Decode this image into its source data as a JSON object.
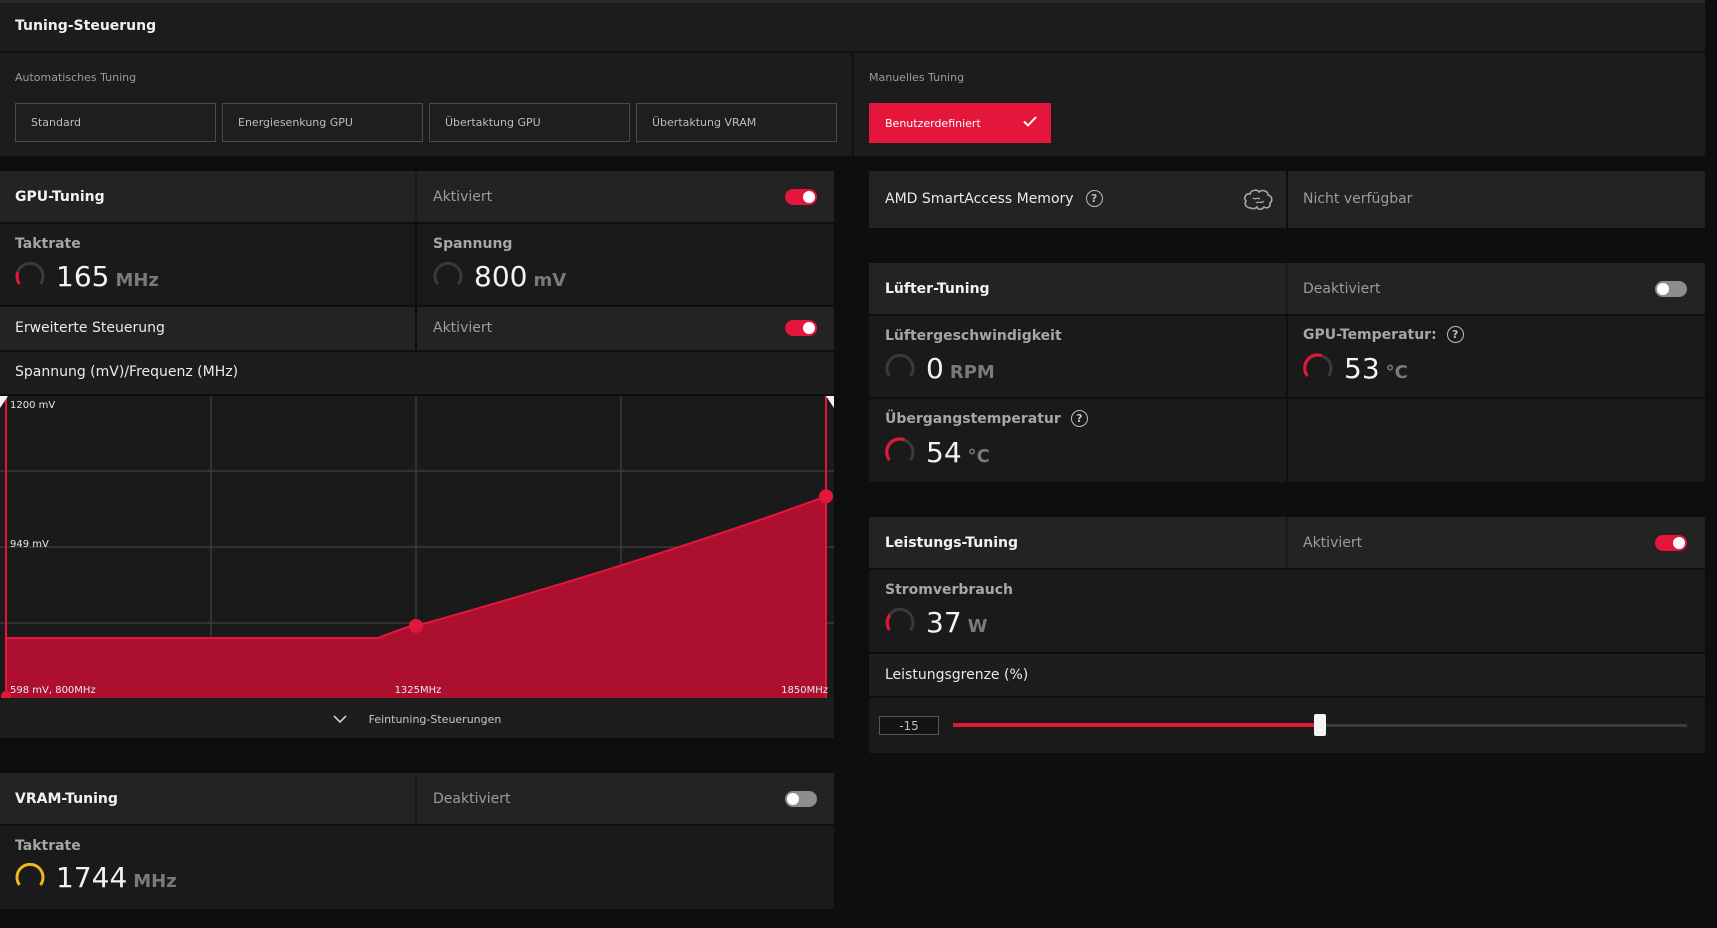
{
  "tuning": {
    "title": "Tuning-Steuerung",
    "auto_label": "Automatisches Tuning",
    "manual_label": "Manuelles Tuning",
    "presets": [
      "Standard",
      "Energiesenkung GPU",
      "Übertaktung GPU",
      "Übertaktung VRAM"
    ],
    "custom_label": "Benutzerdefiniert"
  },
  "gpu_tuning": {
    "title": "GPU-Tuning",
    "status": "Aktiviert",
    "enabled": true,
    "clock_label": "Taktrate",
    "clock_value": "165",
    "clock_unit": "MHz",
    "voltage_label": "Spannung",
    "voltage_value": "800",
    "voltage_unit": "mV",
    "advanced_label": "Erweiterte Steuerung",
    "advanced_status": "Aktiviert",
    "advanced_enabled": true,
    "curve_label": "Spannung (mV)/Frequenz (MHz)",
    "fine_tune_label": "Feintuning-Steuerungen"
  },
  "chart_data": {
    "type": "area",
    "title": "Spannung (mV)/Frequenz (MHz)",
    "x": [
      800,
      1325,
      1850
    ],
    "y": [
      598,
      598,
      1000
    ],
    "xlim": [
      800,
      1850
    ],
    "ylim": [
      598,
      1200
    ],
    "labels": {
      "top": "1200 mV",
      "mid": "949 mV",
      "origin": "598 mV, 800MHz",
      "x_mid": "1325MHz",
      "x_max": "1850MHz"
    },
    "point_labels": {
      "p1": "1325MHz",
      "p2": "1850MHz"
    },
    "grid": true,
    "color": "#c8102e"
  },
  "vram_tuning": {
    "title": "VRAM-Tuning",
    "status": "Deaktiviert",
    "enabled": false,
    "clock_label": "Taktrate",
    "clock_value": "1744",
    "clock_unit": "MHz"
  },
  "smart_access": {
    "title": "AMD SmartAccess Memory",
    "status": "Nicht verfügbar"
  },
  "fan_tuning": {
    "title": "Lüfter-Tuning",
    "status": "Deaktiviert",
    "enabled": false,
    "speed_label": "Lüftergeschwindigkeit",
    "speed_value": "0",
    "speed_unit": "RPM",
    "gpu_temp_label": "GPU-Temperatur:",
    "gpu_temp_value": "53",
    "gpu_temp_unit": "°C",
    "junction_label": "Übergangstemperatur",
    "junction_value": "54",
    "junction_unit": "°C"
  },
  "power_tuning": {
    "title": "Leistungs-Tuning",
    "status": "Aktiviert",
    "enabled": true,
    "power_label": "Stromverbrauch",
    "power_value": "37",
    "power_unit": "W",
    "limit_label": "Leistungsgrenze (%)",
    "limit_value": "-15",
    "limit_fraction": 0.5
  },
  "colors": {
    "accent": "#e4163b",
    "vram_gauge": "#f2b81b"
  }
}
